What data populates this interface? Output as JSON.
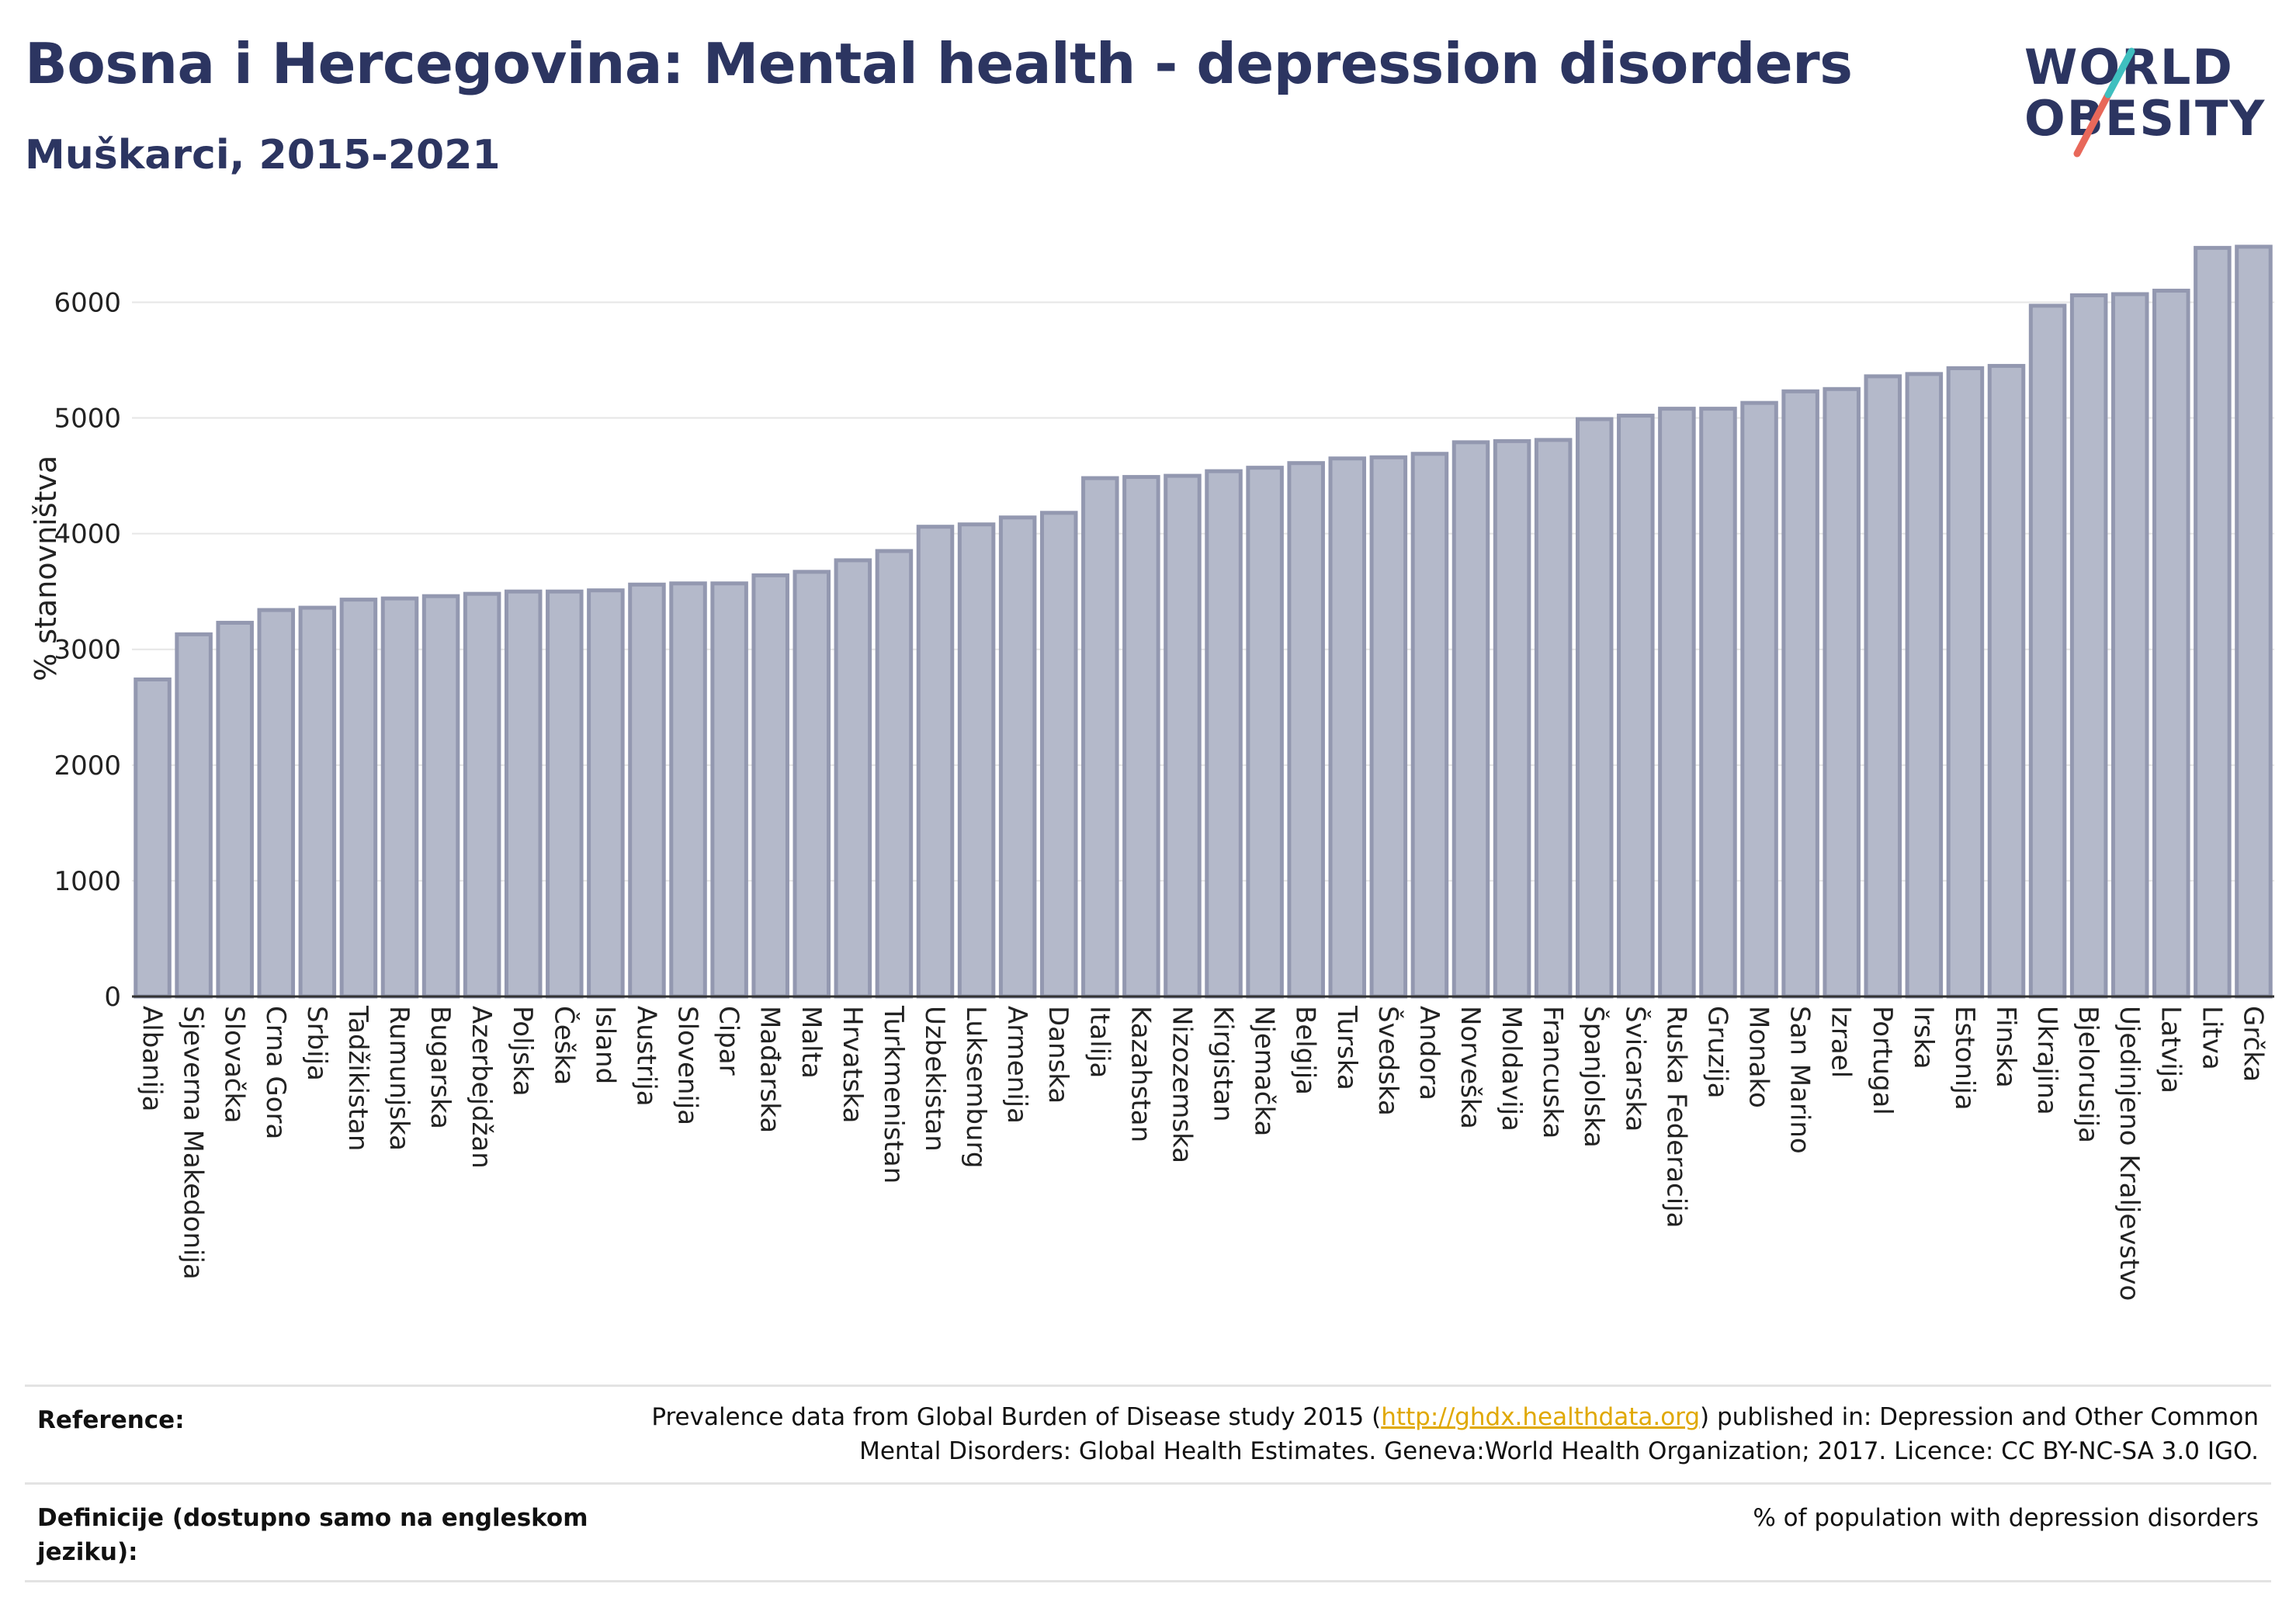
{
  "header": {
    "title": "Bosna i Hercegovina: Mental health - depression disorders",
    "subtitle": "Muškarci, 2015-2021"
  },
  "logo": {
    "line1": "WORLD",
    "line2": "OBESITY",
    "accent_teal": "#3fbfbf",
    "accent_red": "#e8685a",
    "text_color": "#2c3561"
  },
  "chart_data": {
    "type": "bar",
    "ylabel": "% stanovništva",
    "xlabel": "",
    "ylim": [
      0,
      6600
    ],
    "yticks": [
      0,
      1000,
      2000,
      3000,
      4000,
      5000,
      6000
    ],
    "grid": true,
    "bar_fill": "#b4b9ca",
    "bar_stroke": "#9398b0",
    "categories": [
      "Albanija",
      "Sjeverna Makedonija",
      "Slovačka",
      "Crna Gora",
      "Srbija",
      "Tadžikistan",
      "Rumunjska",
      "Bugarska",
      "Azerbejdžan",
      "Poljska",
      "Češka",
      "Island",
      "Austrija",
      "Slovenija",
      "Cipar",
      "Mađarska",
      "Malta",
      "Hrvatska",
      "Turkmenistan",
      "Uzbekistan",
      "Luksemburg",
      "Armenija",
      "Danska",
      "Italija",
      "Kazahstan",
      "Nizozemska",
      "Kirgistan",
      "Njemačka",
      "Belgija",
      "Turska",
      "Švedska",
      "Andora",
      "Norveška",
      "Moldavija",
      "Francuska",
      "Španjolska",
      "Švicarska",
      "Ruska Federacija",
      "Gruzija",
      "Monako",
      "San Marino",
      "Izrael",
      "Portugal",
      "Irska",
      "Estonija",
      "Finska",
      "Ukrajina",
      "Bjelorusija",
      "Ujedinjeno Kraljevstvo",
      "Latvija",
      "Litva",
      "Grčka"
    ],
    "values": [
      2740,
      3130,
      3230,
      3340,
      3360,
      3430,
      3440,
      3460,
      3480,
      3500,
      3500,
      3510,
      3560,
      3570,
      3570,
      3640,
      3670,
      3770,
      3850,
      4060,
      4080,
      4140,
      4180,
      4480,
      4490,
      4500,
      4540,
      4570,
      4610,
      4650,
      4660,
      4690,
      4790,
      4800,
      4810,
      4990,
      5020,
      5080,
      5080,
      5130,
      5230,
      5250,
      5360,
      5380,
      5430,
      5450,
      5970,
      6060,
      6070,
      6100,
      6470,
      6480
    ]
  },
  "footer": {
    "reference_label": "Reference:",
    "reference_text_before": "Prevalence data from Global Burden of Disease study 2015 (",
    "reference_link": "http://ghdx.healthdata.org",
    "reference_text_after": ") published in: Depression and Other Common",
    "reference_text_line2": "Mental Disorders: Global Health Estimates. Geneva:World Health Organization; 2017. Licence: CC BY-NC-SA 3.0 IGO.",
    "definition_label": "Definicije (dostupno samo na engleskom jeziku):",
    "definition_text": "% of population with depression disorders"
  }
}
